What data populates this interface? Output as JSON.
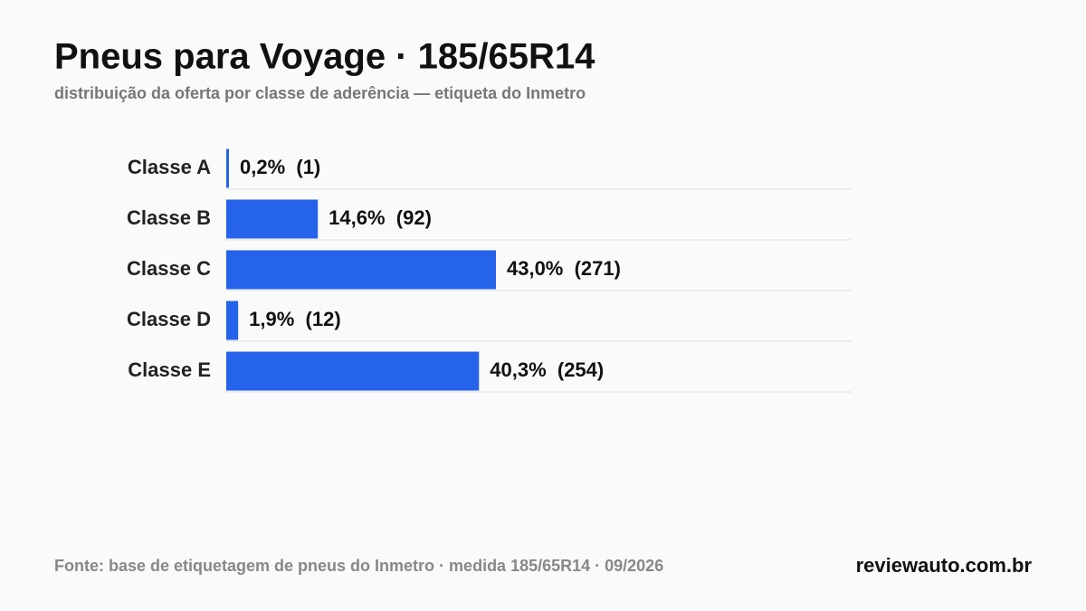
{
  "chart_data": {
    "type": "hbar",
    "title": "Pneus para Voyage · 185/65R14",
    "subtitle": "distribuição da oferta por classe de aderência — etiqueta do Inmetro",
    "categories": [
      "Classe A",
      "Classe B",
      "Classe C",
      "Classe D",
      "Classe E"
    ],
    "values": [
      0.2,
      14.6,
      43.0,
      1.9,
      40.3
    ],
    "value_labels": [
      "0,2%  (1)",
      "14,6%  (92)",
      "43,0%  (271)",
      "1,9%  (12)",
      "40,3%  (254)"
    ],
    "color": "#2563eb",
    "xlim": [
      0,
      100
    ],
    "source": "Fonte: base de etiquetagem de pneus do Inmetro · medida 185/65R14 · 09/2026",
    "brand": "reviewauto.com.br"
  }
}
